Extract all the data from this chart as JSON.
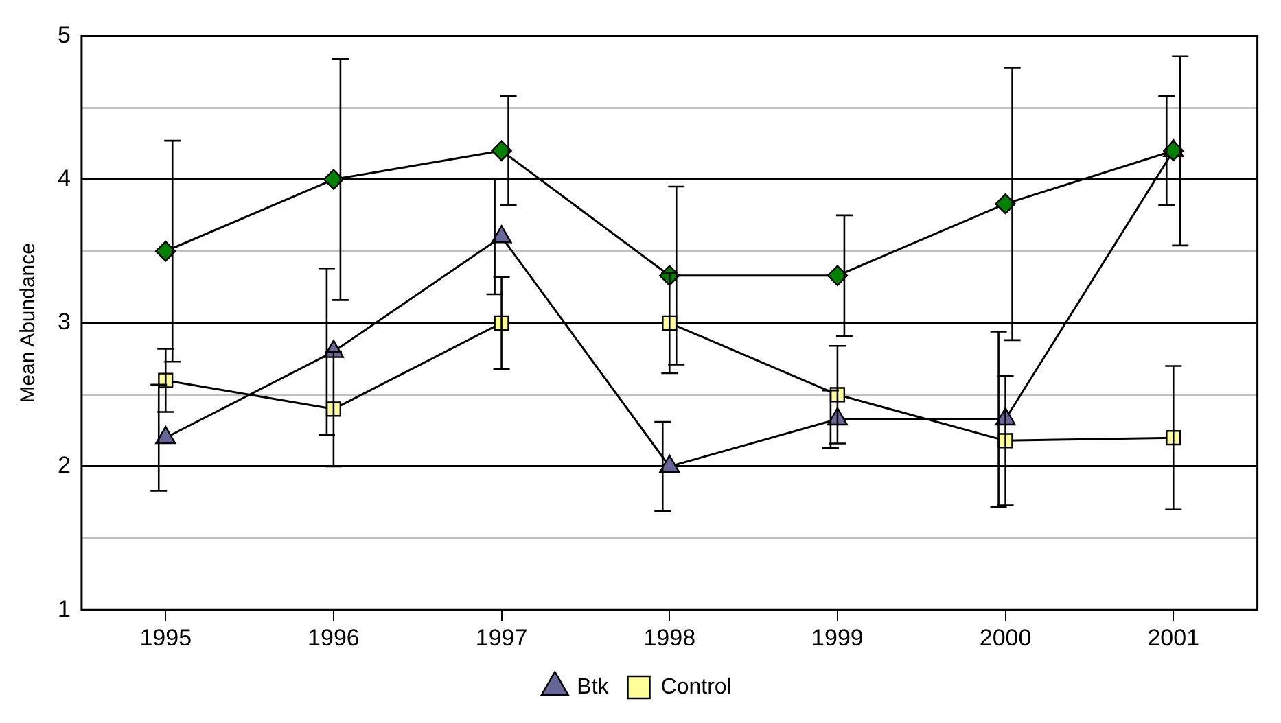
{
  "chart_data": {
    "type": "line",
    "ylabel": "Mean Abundance",
    "categories": [
      "1995",
      "1996",
      "1997",
      "1998",
      "1999",
      "2000",
      "2001"
    ],
    "ylim": [
      1,
      5
    ],
    "yticks": [
      1,
      {
        "value": 1.5,
        "label": null
      },
      2,
      {
        "value": 2.5,
        "label": null
      },
      3,
      {
        "value": 3.5,
        "label": null
      },
      4,
      {
        "value": 4.5,
        "label": null
      },
      5
    ],
    "grid": "y",
    "legend": "bottom",
    "line_style": "solid",
    "series": [
      {
        "name": "Btk",
        "color": "#666699",
        "marker": "triangle",
        "values": [
          2.2,
          2.8,
          3.6,
          2.0,
          2.33,
          2.33,
          4.2
        ],
        "errors": [
          0.37,
          0.58,
          0.4,
          0.31,
          0.2,
          0.61,
          0.38
        ]
      },
      {
        "name": "Control",
        "color": "#ffff99",
        "marker": "square",
        "values": [
          2.6,
          2.4,
          3.0,
          3.0,
          2.5,
          2.18,
          2.2
        ],
        "errors": [
          0.22,
          0.4,
          0.32,
          0.35,
          0.34,
          0.45,
          0.5
        ]
      },
      {
        "color": "#008000",
        "marker": "diamond",
        "values": [
          3.5,
          4.0,
          4.2,
          3.33,
          3.33,
          3.83,
          4.2
        ],
        "errors": [
          0.77,
          0.84,
          0.38,
          0.62,
          0.42,
          0.95,
          0.66
        ]
      }
    ]
  }
}
